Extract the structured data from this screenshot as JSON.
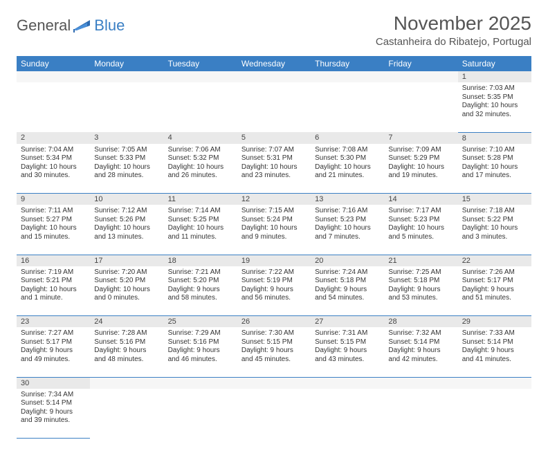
{
  "brand": {
    "general": "General",
    "blue": "Blue"
  },
  "title": "November 2025",
  "location": "Castanheira do Ribatejo, Portugal",
  "colors": {
    "header_bg": "#3a7fc4",
    "header_text": "#ffffff",
    "daynum_bg": "#e9e9e9",
    "border": "#3a7fc4",
    "page_bg": "#ffffff",
    "text": "#333333"
  },
  "dayNames": [
    "Sunday",
    "Monday",
    "Tuesday",
    "Wednesday",
    "Thursday",
    "Friday",
    "Saturday"
  ],
  "weeks": [
    [
      null,
      null,
      null,
      null,
      null,
      null,
      {
        "n": "1",
        "sr": "Sunrise: 7:03 AM",
        "ss": "Sunset: 5:35 PM",
        "dl": "Daylight: 10 hours and 32 minutes."
      }
    ],
    [
      {
        "n": "2",
        "sr": "Sunrise: 7:04 AM",
        "ss": "Sunset: 5:34 PM",
        "dl": "Daylight: 10 hours and 30 minutes."
      },
      {
        "n": "3",
        "sr": "Sunrise: 7:05 AM",
        "ss": "Sunset: 5:33 PM",
        "dl": "Daylight: 10 hours and 28 minutes."
      },
      {
        "n": "4",
        "sr": "Sunrise: 7:06 AM",
        "ss": "Sunset: 5:32 PM",
        "dl": "Daylight: 10 hours and 26 minutes."
      },
      {
        "n": "5",
        "sr": "Sunrise: 7:07 AM",
        "ss": "Sunset: 5:31 PM",
        "dl": "Daylight: 10 hours and 23 minutes."
      },
      {
        "n": "6",
        "sr": "Sunrise: 7:08 AM",
        "ss": "Sunset: 5:30 PM",
        "dl": "Daylight: 10 hours and 21 minutes."
      },
      {
        "n": "7",
        "sr": "Sunrise: 7:09 AM",
        "ss": "Sunset: 5:29 PM",
        "dl": "Daylight: 10 hours and 19 minutes."
      },
      {
        "n": "8",
        "sr": "Sunrise: 7:10 AM",
        "ss": "Sunset: 5:28 PM",
        "dl": "Daylight: 10 hours and 17 minutes."
      }
    ],
    [
      {
        "n": "9",
        "sr": "Sunrise: 7:11 AM",
        "ss": "Sunset: 5:27 PM",
        "dl": "Daylight: 10 hours and 15 minutes."
      },
      {
        "n": "10",
        "sr": "Sunrise: 7:12 AM",
        "ss": "Sunset: 5:26 PM",
        "dl": "Daylight: 10 hours and 13 minutes."
      },
      {
        "n": "11",
        "sr": "Sunrise: 7:14 AM",
        "ss": "Sunset: 5:25 PM",
        "dl": "Daylight: 10 hours and 11 minutes."
      },
      {
        "n": "12",
        "sr": "Sunrise: 7:15 AM",
        "ss": "Sunset: 5:24 PM",
        "dl": "Daylight: 10 hours and 9 minutes."
      },
      {
        "n": "13",
        "sr": "Sunrise: 7:16 AM",
        "ss": "Sunset: 5:23 PM",
        "dl": "Daylight: 10 hours and 7 minutes."
      },
      {
        "n": "14",
        "sr": "Sunrise: 7:17 AM",
        "ss": "Sunset: 5:23 PM",
        "dl": "Daylight: 10 hours and 5 minutes."
      },
      {
        "n": "15",
        "sr": "Sunrise: 7:18 AM",
        "ss": "Sunset: 5:22 PM",
        "dl": "Daylight: 10 hours and 3 minutes."
      }
    ],
    [
      {
        "n": "16",
        "sr": "Sunrise: 7:19 AM",
        "ss": "Sunset: 5:21 PM",
        "dl": "Daylight: 10 hours and 1 minute."
      },
      {
        "n": "17",
        "sr": "Sunrise: 7:20 AM",
        "ss": "Sunset: 5:20 PM",
        "dl": "Daylight: 10 hours and 0 minutes."
      },
      {
        "n": "18",
        "sr": "Sunrise: 7:21 AM",
        "ss": "Sunset: 5:20 PM",
        "dl": "Daylight: 9 hours and 58 minutes."
      },
      {
        "n": "19",
        "sr": "Sunrise: 7:22 AM",
        "ss": "Sunset: 5:19 PM",
        "dl": "Daylight: 9 hours and 56 minutes."
      },
      {
        "n": "20",
        "sr": "Sunrise: 7:24 AM",
        "ss": "Sunset: 5:18 PM",
        "dl": "Daylight: 9 hours and 54 minutes."
      },
      {
        "n": "21",
        "sr": "Sunrise: 7:25 AM",
        "ss": "Sunset: 5:18 PM",
        "dl": "Daylight: 9 hours and 53 minutes."
      },
      {
        "n": "22",
        "sr": "Sunrise: 7:26 AM",
        "ss": "Sunset: 5:17 PM",
        "dl": "Daylight: 9 hours and 51 minutes."
      }
    ],
    [
      {
        "n": "23",
        "sr": "Sunrise: 7:27 AM",
        "ss": "Sunset: 5:17 PM",
        "dl": "Daylight: 9 hours and 49 minutes."
      },
      {
        "n": "24",
        "sr": "Sunrise: 7:28 AM",
        "ss": "Sunset: 5:16 PM",
        "dl": "Daylight: 9 hours and 48 minutes."
      },
      {
        "n": "25",
        "sr": "Sunrise: 7:29 AM",
        "ss": "Sunset: 5:16 PM",
        "dl": "Daylight: 9 hours and 46 minutes."
      },
      {
        "n": "26",
        "sr": "Sunrise: 7:30 AM",
        "ss": "Sunset: 5:15 PM",
        "dl": "Daylight: 9 hours and 45 minutes."
      },
      {
        "n": "27",
        "sr": "Sunrise: 7:31 AM",
        "ss": "Sunset: 5:15 PM",
        "dl": "Daylight: 9 hours and 43 minutes."
      },
      {
        "n": "28",
        "sr": "Sunrise: 7:32 AM",
        "ss": "Sunset: 5:14 PM",
        "dl": "Daylight: 9 hours and 42 minutes."
      },
      {
        "n": "29",
        "sr": "Sunrise: 7:33 AM",
        "ss": "Sunset: 5:14 PM",
        "dl": "Daylight: 9 hours and 41 minutes."
      }
    ],
    [
      {
        "n": "30",
        "sr": "Sunrise: 7:34 AM",
        "ss": "Sunset: 5:14 PM",
        "dl": "Daylight: 9 hours and 39 minutes."
      },
      null,
      null,
      null,
      null,
      null,
      null
    ]
  ]
}
